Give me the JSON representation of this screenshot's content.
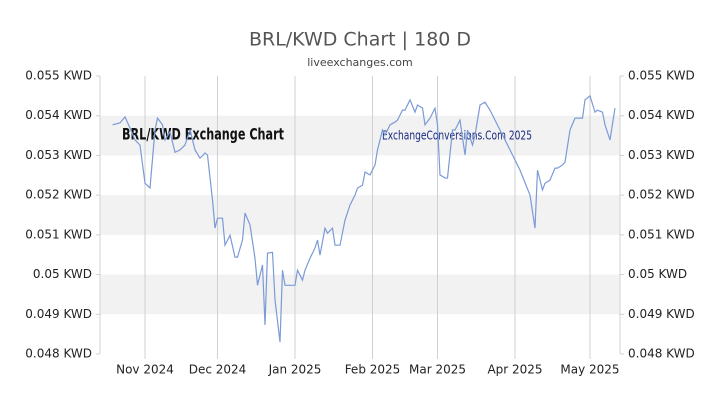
{
  "chart_data": {
    "type": "line",
    "title": "BRL/KWD Chart | 180 D",
    "subtitle": "liveexchanges.com",
    "annotations": [
      "BRL/KWD Exchange Chart",
      "ExchangeConversions.Com 2025"
    ],
    "x": [
      0,
      3,
      5,
      7,
      9,
      11,
      13,
      15,
      17,
      18,
      20,
      21,
      23,
      25,
      27,
      29,
      31,
      33,
      35,
      37,
      38,
      40,
      41,
      42,
      44,
      45,
      47,
      49,
      50,
      52,
      53,
      55,
      57,
      58,
      60,
      61,
      62,
      64,
      65,
      67,
      68,
      69,
      71,
      73,
      74,
      76,
      77,
      79,
      81,
      82,
      83,
      85,
      86,
      88,
      89,
      91,
      93,
      95,
      97,
      98,
      100,
      101,
      103,
      105,
      106,
      108,
      109,
      111,
      113,
      114,
      116,
      117,
      119,
      121,
      122,
      124,
      125,
      127,
      129,
      130,
      131,
      133,
      134,
      136,
      137,
      139,
      141,
      142,
      144,
      145,
      147,
      149,
      151,
      155,
      159,
      163,
      167,
      169,
      170,
      172,
      173,
      175,
      177,
      178,
      180,
      181,
      183,
      185,
      186,
      188,
      189,
      191,
      193,
      194,
      196,
      197,
      199,
      201
    ],
    "series": [
      {
        "color": "#7b9ad8",
        "values": [
          0.05377,
          0.05382,
          0.05397,
          0.05369,
          0.05339,
          0.05326,
          0.0523,
          0.05218,
          0.05364,
          0.05394,
          0.05377,
          0.05339,
          0.05359,
          0.05308,
          0.05314,
          0.05326,
          0.05364,
          0.05314,
          0.05293,
          0.05306,
          0.05301,
          0.05188,
          0.05117,
          0.05142,
          0.05142,
          0.05074,
          0.05099,
          0.05044,
          0.05044,
          0.05087,
          0.05155,
          0.05125,
          0.05041,
          0.04973,
          0.05024,
          0.04873,
          0.05054,
          0.05056,
          0.04936,
          0.0483,
          0.05011,
          0.04973,
          0.04973,
          0.04973,
          0.05011,
          0.04986,
          0.05011,
          0.05041,
          0.05067,
          0.05087,
          0.05049,
          0.05117,
          0.05104,
          0.05117,
          0.05074,
          0.05074,
          0.05137,
          0.05175,
          0.052,
          0.05218,
          0.05225,
          0.05258,
          0.05251,
          0.05276,
          0.05314,
          0.05364,
          0.05351,
          0.05377,
          0.05384,
          0.05389,
          0.05414,
          0.05414,
          0.0544,
          0.05409,
          0.05427,
          0.05419,
          0.05377,
          0.05394,
          0.05419,
          0.05377,
          0.05251,
          0.05243,
          0.05243,
          0.05364,
          0.05364,
          0.05389,
          0.05301,
          0.05364,
          0.05326,
          0.05351,
          0.05427,
          0.05434,
          0.05414,
          0.05364,
          0.05314,
          0.05263,
          0.052,
          0.05117,
          0.05263,
          0.05213,
          0.0523,
          0.05238,
          0.05268,
          0.05268,
          0.05276,
          0.05283,
          0.05364,
          0.05394,
          0.05394,
          0.05394,
          0.0544,
          0.0545,
          0.05409,
          0.05414,
          0.05409,
          0.05377,
          0.05339,
          0.05419
        ]
      }
    ],
    "xlim": [
      -5,
      203
    ],
    "xticks": [
      {
        "value": 13,
        "label": "Nov 2024"
      },
      {
        "value": 42,
        "label": "Dec 2024"
      },
      {
        "value": 73,
        "label": "Jan 2025"
      },
      {
        "value": 104,
        "label": "Feb 2025"
      },
      {
        "value": 130,
        "label": "Mar 2025"
      },
      {
        "value": 161,
        "label": "Apr 2025"
      },
      {
        "value": 191,
        "label": "May 2025"
      }
    ],
    "ylim": [
      0.048,
      0.055
    ],
    "yticks": [
      {
        "value": 0.048,
        "label": "0.048 KWD"
      },
      {
        "value": 0.049,
        "label": "0.049 KWD"
      },
      {
        "value": 0.05,
        "label": "0.05 KWD"
      },
      {
        "value": 0.051,
        "label": "0.051 KWD"
      },
      {
        "value": 0.052,
        "label": "0.052 KWD"
      },
      {
        "value": 0.053,
        "label": "0.053 KWD"
      },
      {
        "value": 0.054,
        "label": "0.054 KWD"
      },
      {
        "value": 0.055,
        "label": "0.055 KWD"
      }
    ],
    "y2lim": [
      0.048,
      0.055
    ],
    "y2ticks": [
      {
        "value": 0.048,
        "label": "0.048 KWD"
      },
      {
        "value": 0.049,
        "label": "0.049 KWD"
      },
      {
        "value": 0.05,
        "label": "0.05 KWD"
      },
      {
        "value": 0.051,
        "label": "0.051 KWD"
      },
      {
        "value": 0.052,
        "label": "0.052 KWD"
      },
      {
        "value": 0.053,
        "label": "0.053 KWD"
      },
      {
        "value": 0.054,
        "label": "0.054 KWD"
      },
      {
        "value": 0.055,
        "label": "0.055 KWD"
      }
    ],
    "band_color": "#f2f2f2",
    "grid": true
  }
}
